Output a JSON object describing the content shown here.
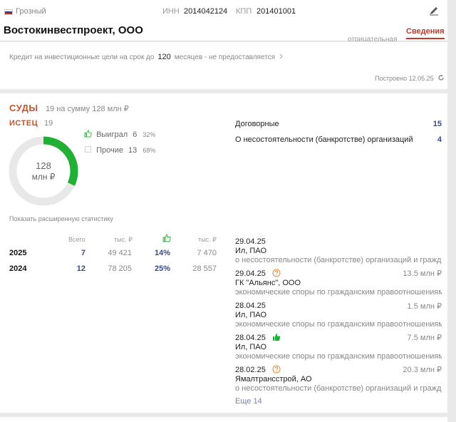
{
  "header": {
    "region": "Грозный",
    "inn_label": "ИНН",
    "inn_value": "2014042124",
    "kpp_label": "КПП",
    "kpp_value": "201401001",
    "company_name": "Востокинвестпроект, ООО",
    "active_tab": "Сведения",
    "ghost_text": "отрицательная",
    "edit_icon": "pencil-icon",
    "flag_colors": [
      "#ffffff",
      "#1c3f94",
      "#d52b1e"
    ]
  },
  "credit": {
    "prefix": "Кредит на инвестиционные цели на срок до",
    "months": "120",
    "suffix": "месяцев - не предоставляется",
    "built": "Построено 12.05.25"
  },
  "courts": {
    "title": "СУДЫ",
    "subtitle": "19 на сумму 128 млн ₽",
    "plaintiff_title": "ИСТЕЦ",
    "plaintiff_count": "19",
    "donut_value": "128",
    "donut_unit": "млн ₽",
    "donut_won_fraction": 0.32,
    "accent_color": "#21b035",
    "won_label": "Выиграл",
    "won_count": "6",
    "won_pct": "32%",
    "other_label": "Прочие",
    "other_count": "13",
    "other_pct": "68%",
    "extended_stats": "Показать расширенную статистику",
    "stats_headers": {
      "total": "Всего",
      "thousand_1": "тыс. ₽",
      "thousand_2": "тыс. ₽"
    },
    "stats_rows": [
      {
        "year": "2025",
        "total": "7",
        "sum": "49 421",
        "won_pct": "14%",
        "won_sum": "7 470"
      },
      {
        "year": "2024",
        "total": "12",
        "sum": "78 205",
        "won_pct": "25%",
        "won_sum": "28 557"
      }
    ],
    "categories": [
      {
        "label": "Договорные",
        "count": "15"
      },
      {
        "label": "О несостоятельности (банкротстве) организаций",
        "count": "4"
      }
    ],
    "cases": [
      {
        "date": "29.04.25",
        "amount": "",
        "party": "Ил, ПАО",
        "type": "о несостоятельности (банкротстве) организаций и граждан",
        "icon": ""
      },
      {
        "date": "29.04.25",
        "amount": "13.5 млн ₽",
        "party": "ГК \"Альянс\", ООО",
        "type": "экономические споры по гражданским правоотношениям",
        "icon": "question-icon"
      },
      {
        "date": "28.04.25",
        "amount": "1.5 млн ₽",
        "party": "Ил, ПАО",
        "type": "экономические споры по гражданским правоотношениям",
        "icon": ""
      },
      {
        "date": "28.04.25",
        "amount": "7.5 млн ₽",
        "party": "Ил, ПАО",
        "type": "экономические споры по гражданским правоотношениям",
        "icon": "thumbs-up-icon"
      },
      {
        "date": "28.02.25",
        "amount": "20.3 млн ₽",
        "party": "Ямалтрансстрой, АО",
        "type": "о несостоятельности (банкротстве) организаций и граждан",
        "icon": "question-icon"
      }
    ],
    "more": "Еще 14"
  }
}
